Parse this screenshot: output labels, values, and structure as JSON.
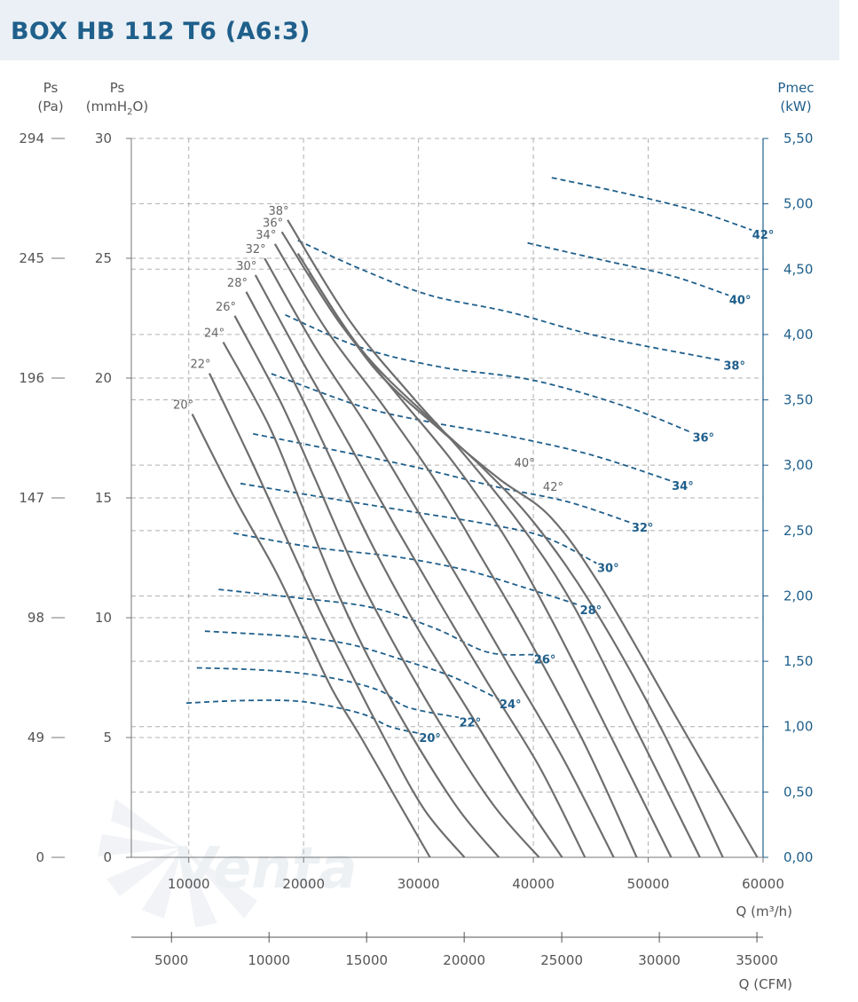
{
  "title": "BOX HB 112 T6 (A6:3)",
  "colors": {
    "pressure_curve": "#6e6e6e",
    "power_curve": "#1f5f8b",
    "grid": "#a9a9a9",
    "axis_blue": "#1f5f8b"
  },
  "chart_data": {
    "type": "line",
    "x_axis": {
      "label": "Q (m³/h)",
      "ticks": [
        "10000",
        "20000",
        "30000",
        "40000",
        "50000",
        "60000"
      ],
      "range": [
        5000,
        60000
      ]
    },
    "x2_axis": {
      "label": "Q (CFM)",
      "ticks": [
        "5000",
        "10000",
        "15000",
        "20000",
        "25000",
        "30000",
        "35000"
      ]
    },
    "y_axis_pa": {
      "label": "Ps",
      "unit": "(Pa)",
      "ticks": [
        "0",
        "49",
        "98",
        "147",
        "196",
        "245",
        "294"
      ]
    },
    "y_axis_mmh2o": {
      "label": "Ps",
      "unit_prefix": "(mmH",
      "unit_sub": "2",
      "unit_suffix": "O)",
      "ticks": [
        "0",
        "5",
        "10",
        "15",
        "20",
        "25",
        "30"
      ],
      "range": [
        0,
        30
      ]
    },
    "y_axis_power": {
      "label": "Pmec",
      "unit": "(kW)",
      "ticks": [
        "0,00",
        "0,50",
        "1,00",
        "1,50",
        "2,00",
        "2,50",
        "3,00",
        "3,50",
        "4,00",
        "4,50",
        "5,00",
        "5,50"
      ],
      "range": [
        0,
        5.5
      ]
    },
    "grid": true,
    "pressure_series": [
      {
        "name": "20°",
        "points": [
          [
            10300,
            18.5
          ],
          [
            14000,
            15
          ],
          [
            17500,
            12
          ],
          [
            20000,
            9.5
          ],
          [
            22500,
            7
          ],
          [
            25000,
            5
          ],
          [
            28000,
            2.5
          ],
          [
            31000,
            0
          ]
        ]
      },
      {
        "name": "22°",
        "points": [
          [
            11800,
            20.2
          ],
          [
            15500,
            16.5
          ],
          [
            19000,
            12.8
          ],
          [
            21500,
            10.2
          ],
          [
            24000,
            7.8
          ],
          [
            27000,
            5
          ],
          [
            30500,
            2
          ],
          [
            34000,
            0
          ]
        ]
      },
      {
        "name": "24°",
        "points": [
          [
            13000,
            21.5
          ],
          [
            17000,
            18
          ],
          [
            20000,
            14.5
          ],
          [
            23000,
            11
          ],
          [
            26000,
            8
          ],
          [
            29500,
            5
          ],
          [
            33500,
            2
          ],
          [
            37000,
            0
          ]
        ]
      },
      {
        "name": "26°",
        "points": [
          [
            14000,
            22.6
          ],
          [
            18000,
            19
          ],
          [
            21000,
            15.8
          ],
          [
            24500,
            12
          ],
          [
            28000,
            8.8
          ],
          [
            32000,
            5.5
          ],
          [
            36500,
            2.2
          ],
          [
            40500,
            0
          ]
        ]
      },
      {
        "name": "28°",
        "points": [
          [
            15000,
            23.6
          ],
          [
            19000,
            20
          ],
          [
            22500,
            16.5
          ],
          [
            26000,
            13
          ],
          [
            30000,
            9.5
          ],
          [
            34500,
            6
          ],
          [
            39000,
            2.5
          ],
          [
            42500,
            0
          ]
        ]
      },
      {
        "name": "30°",
        "points": [
          [
            15800,
            24.3
          ],
          [
            20000,
            20.6
          ],
          [
            24000,
            17.2
          ],
          [
            28000,
            13.8
          ],
          [
            32000,
            10.5
          ],
          [
            36000,
            7.3
          ],
          [
            40500,
            3.8
          ],
          [
            44500,
            0
          ]
        ]
      },
      {
        "name": "32°",
        "points": [
          [
            16600,
            25
          ],
          [
            21000,
            21.3
          ],
          [
            25500,
            18
          ],
          [
            29500,
            14.8
          ],
          [
            33500,
            11.6
          ],
          [
            37500,
            8.3
          ],
          [
            42500,
            4.2
          ],
          [
            47000,
            0
          ]
        ]
      },
      {
        "name": "34°",
        "points": [
          [
            17500,
            25.6
          ],
          [
            22000,
            22
          ],
          [
            27000,
            18.8
          ],
          [
            31500,
            15.7
          ],
          [
            35500,
            12.5
          ],
          [
            39500,
            9.2
          ],
          [
            44500,
            4.7
          ],
          [
            49000,
            0
          ]
        ]
      },
      {
        "name": "36°",
        "points": [
          [
            18100,
            26.1
          ],
          [
            23000,
            22.4
          ],
          [
            28000,
            19.4
          ],
          [
            33000,
            16.5
          ],
          [
            37500,
            13.4
          ],
          [
            41500,
            10
          ],
          [
            47000,
            4.8
          ],
          [
            52000,
            0
          ]
        ]
      },
      {
        "name": "38°",
        "points": [
          [
            18600,
            26.6
          ],
          [
            24000,
            22.4
          ],
          [
            29500,
            19.2
          ],
          [
            34000,
            16.8
          ],
          [
            39000,
            13.8
          ],
          [
            43500,
            10.5
          ],
          [
            49000,
            5.3
          ],
          [
            54500,
            0
          ]
        ]
      },
      {
        "name": "40°",
        "points": [
          [
            19500,
            25.2
          ],
          [
            25000,
            21.2
          ],
          [
            31000,
            18.3
          ],
          [
            35500,
            16.3
          ],
          [
            40000,
            14
          ],
          [
            45000,
            10.6
          ],
          [
            51000,
            5.5
          ],
          [
            56500,
            0
          ]
        ]
      },
      {
        "name": "42°",
        "points": [
          [
            20500,
            24.4
          ],
          [
            26000,
            20.5
          ],
          [
            32000,
            17.8
          ],
          [
            37000,
            15.8
          ],
          [
            41500,
            14.2
          ],
          [
            46000,
            11.2
          ],
          [
            52500,
            5.8
          ],
          [
            59500,
            0
          ]
        ]
      }
    ],
    "power_series": [
      {
        "name": "20°",
        "points": [
          [
            9800,
            1.18
          ],
          [
            15000,
            1.2
          ],
          [
            20000,
            1.19
          ],
          [
            25000,
            1.1
          ],
          [
            27500,
            1.0
          ],
          [
            30000,
            0.95
          ]
        ]
      },
      {
        "name": "22°",
        "points": [
          [
            10700,
            1.45
          ],
          [
            17000,
            1.43
          ],
          [
            22000,
            1.38
          ],
          [
            26500,
            1.28
          ],
          [
            29000,
            1.15
          ],
          [
            33500,
            1.07
          ]
        ]
      },
      {
        "name": "24°",
        "points": [
          [
            11400,
            1.73
          ],
          [
            19000,
            1.69
          ],
          [
            24000,
            1.63
          ],
          [
            29000,
            1.5
          ],
          [
            33000,
            1.38
          ],
          [
            37000,
            1.21
          ]
        ]
      },
      {
        "name": "26°",
        "points": [
          [
            12600,
            2.05
          ],
          [
            20000,
            1.98
          ],
          [
            26000,
            1.91
          ],
          [
            31500,
            1.75
          ],
          [
            36000,
            1.57
          ],
          [
            40000,
            1.55
          ]
        ]
      },
      {
        "name": "28°",
        "points": [
          [
            13900,
            2.48
          ],
          [
            21000,
            2.37
          ],
          [
            28000,
            2.3
          ],
          [
            34000,
            2.2
          ],
          [
            39000,
            2.07
          ],
          [
            44000,
            1.93
          ]
        ]
      },
      {
        "name": "30°",
        "points": [
          [
            14500,
            2.86
          ],
          [
            22000,
            2.75
          ],
          [
            29000,
            2.65
          ],
          [
            36000,
            2.55
          ],
          [
            41000,
            2.45
          ],
          [
            45500,
            2.25
          ]
        ]
      },
      {
        "name": "32°",
        "points": [
          [
            15600,
            3.24
          ],
          [
            23000,
            3.11
          ],
          [
            30000,
            2.98
          ],
          [
            37000,
            2.83
          ],
          [
            43000,
            2.72
          ],
          [
            48500,
            2.56
          ]
        ]
      },
      {
        "name": "34°",
        "points": [
          [
            17200,
            3.7
          ],
          [
            25000,
            3.45
          ],
          [
            31000,
            3.33
          ],
          [
            38000,
            3.22
          ],
          [
            45000,
            3.08
          ],
          [
            52000,
            2.88
          ]
        ]
      },
      {
        "name": "36°",
        "points": [
          [
            18400,
            4.15
          ],
          [
            25000,
            3.9
          ],
          [
            32000,
            3.75
          ],
          [
            40000,
            3.65
          ],
          [
            48000,
            3.45
          ],
          [
            53800,
            3.25
          ]
        ]
      },
      {
        "name": "38°",
        "points": [
          [
            19500,
            4.72
          ],
          [
            25000,
            4.5
          ],
          [
            31000,
            4.3
          ],
          [
            38000,
            4.17
          ],
          [
            46000,
            3.98
          ],
          [
            56500,
            3.8
          ]
        ]
      },
      {
        "name": "40°",
        "points": [
          [
            39500,
            4.7
          ],
          [
            46000,
            4.57
          ],
          [
            52000,
            4.45
          ],
          [
            57000,
            4.3
          ]
        ]
      },
      {
        "name": "42°",
        "points": [
          [
            41600,
            5.2
          ],
          [
            48000,
            5.08
          ],
          [
            54000,
            4.95
          ],
          [
            59000,
            4.8
          ]
        ]
      }
    ]
  },
  "watermark": "Venta"
}
